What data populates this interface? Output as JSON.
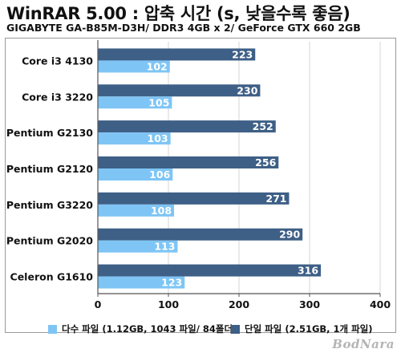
{
  "header": {
    "title": "WinRAR 5.00 : 압축 시간 (s, 낮을수록 좋음)",
    "subtitle": "GIGABYTE GA-B85M-D3H/ DDR3 4GB x 2/ GeForce GTX 660 2GB"
  },
  "watermark": "BodNara",
  "colors": {
    "multi": "#7ec5f5",
    "single": "#3e5f86",
    "grid": "#d4d4d4",
    "frame": "#9a9a9a"
  },
  "chart_data": {
    "type": "bar",
    "orientation": "horizontal",
    "categories": [
      "Core i3 4130",
      "Core i3 3220",
      "Pentium G2130",
      "Pentium G2120",
      "Pentium G3220",
      "Pentium G2020",
      "Celeron G1610"
    ],
    "series": [
      {
        "name": "다수 파일 (1.12GB, 1043 파일/ 84폴더)",
        "values": [
          102,
          105,
          103,
          106,
          108,
          113,
          123
        ],
        "color": "#7ec5f5"
      },
      {
        "name": "단일 파일 (2.51GB, 1개 파일)",
        "values": [
          223,
          230,
          252,
          256,
          271,
          290,
          316
        ],
        "color": "#3e5f86"
      }
    ],
    "xlim": [
      0,
      400
    ],
    "xticks": [
      0,
      100,
      200,
      300,
      400
    ],
    "grid": true,
    "legend_position": "bottom",
    "data_labels": true
  }
}
